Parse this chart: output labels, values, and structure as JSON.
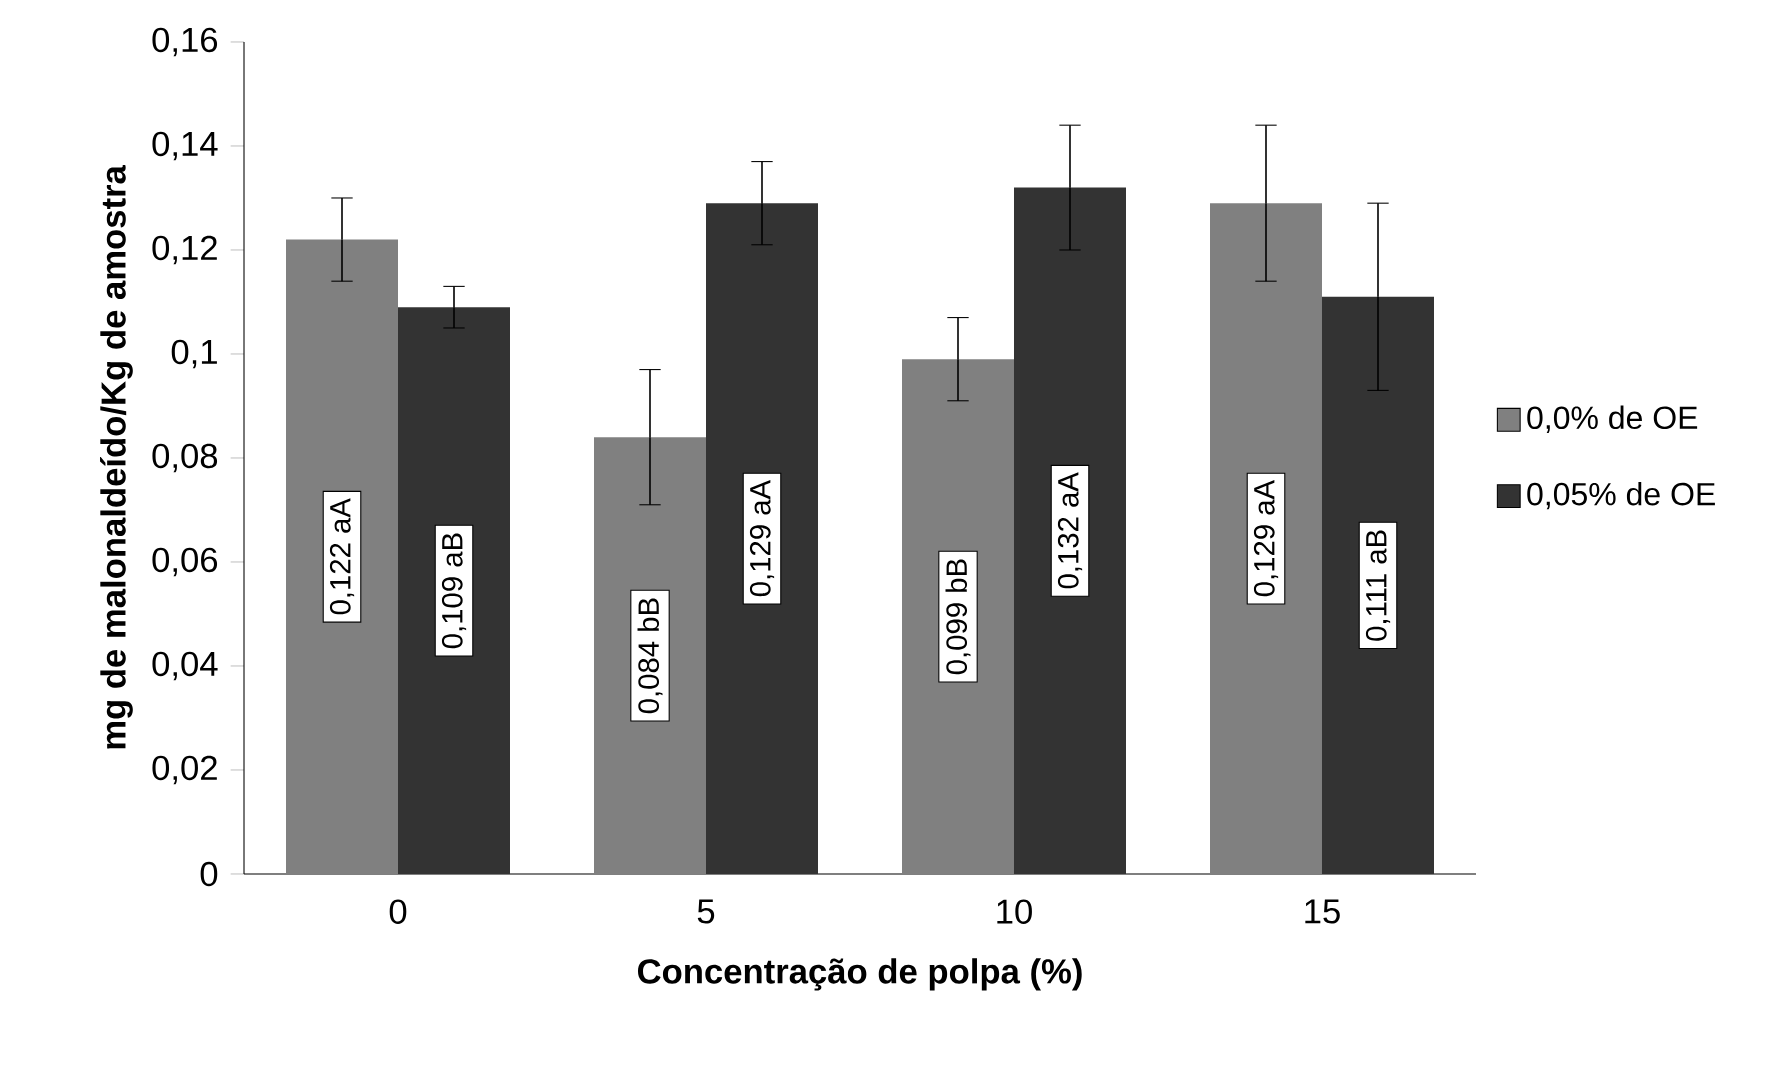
{
  "chart_data": {
    "type": "bar",
    "xlabel": "Concentração de polpa (%)",
    "ylabel": "mg de malonaldeído/Kg de amostra",
    "categories": [
      "0",
      "5",
      "10",
      "15"
    ],
    "series": [
      {
        "name": "0,0% de OE",
        "color": "#808080",
        "values": [
          0.122,
          0.084,
          0.099,
          0.129
        ],
        "errors": [
          0.008,
          0.013,
          0.008,
          0.015
        ],
        "value_labels": [
          "0,122 aA",
          "0,084 bB",
          "0,099 bB",
          "0,129 aA"
        ]
      },
      {
        "name": "0,05% de OE",
        "color": "#333333",
        "values": [
          0.109,
          0.129,
          0.132,
          0.111
        ],
        "errors": [
          0.004,
          0.008,
          0.012,
          0.018
        ],
        "value_labels": [
          "0,109 aB",
          "0,129 aA",
          "0,132 aA",
          "0,111 aB"
        ]
      }
    ],
    "ylim": [
      0,
      0.16
    ],
    "yticks": [
      0,
      {
        "value": 0.02,
        "label": "0,02"
      },
      {
        "value": 0.04,
        "label": "0,04"
      },
      {
        "value": 0.06,
        "label": "0,06"
      },
      {
        "value": 0.08,
        "label": "0,08"
      },
      {
        "value": 0.1,
        "label": "0,1"
      },
      {
        "value": 0.12,
        "label": "0,12"
      },
      {
        "value": 0.14,
        "label": "0,14"
      },
      {
        "value": 0.16,
        "label": "0,16"
      }
    ],
    "grid": false,
    "legend": "right"
  }
}
